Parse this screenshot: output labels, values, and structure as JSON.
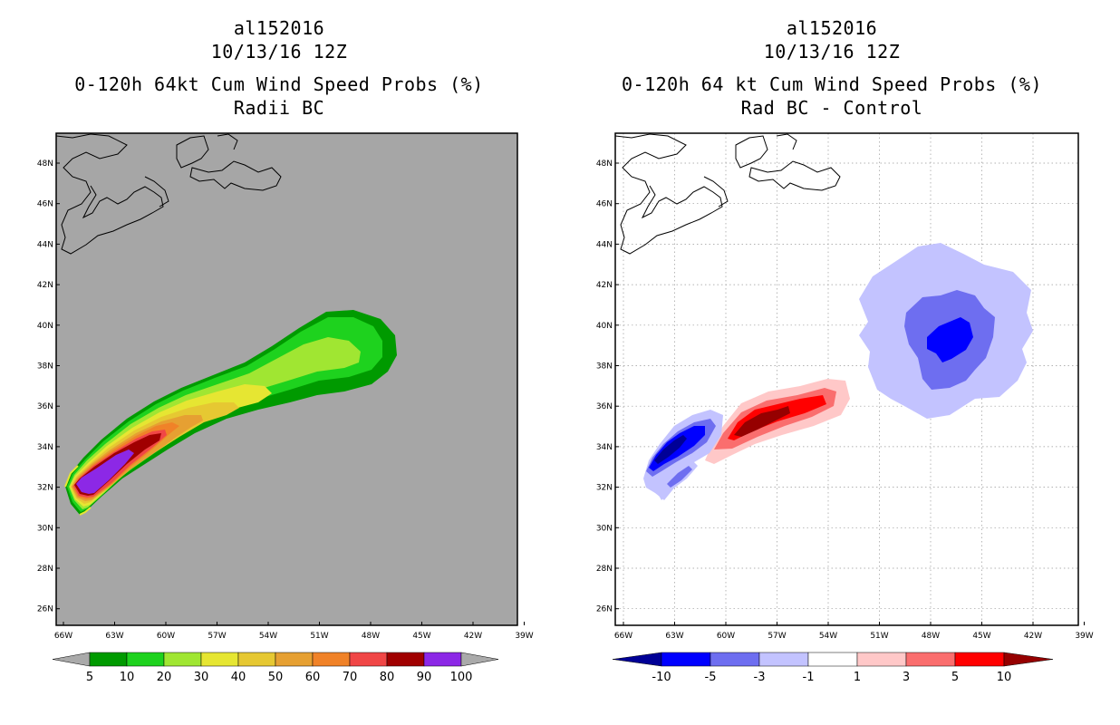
{
  "left_panel": {
    "title_lines": [
      "al152016",
      "10/13/16 12Z",
      "0-120h 64kt Cum Wind Speed Probs (%)",
      "Radii BC"
    ],
    "colorbar": {
      "labels": [
        "5",
        "10",
        "20",
        "30",
        "40",
        "50",
        "60",
        "70",
        "80",
        "90",
        "100"
      ],
      "colors": [
        "#aaaaaa",
        "#009a00",
        "#1ed21e",
        "#a0e632",
        "#e6e632",
        "#e6c832",
        "#e6a032",
        "#f08228",
        "#f04646",
        "#a00000",
        "#8c28e6",
        "#aaaaaa"
      ]
    },
    "background_color": "#a6a6a6"
  },
  "right_panel": {
    "title_lines": [
      "al152016",
      "10/13/16 12Z",
      "0-120h 64 kt Cum Wind Speed Probs (%)",
      "Rad BC - Control"
    ],
    "colorbar": {
      "labels": [
        "-10",
        "-5",
        "-3",
        "-1",
        "1",
        "3",
        "5",
        "10"
      ],
      "colors": [
        "#000096",
        "#0000ff",
        "#6e6ef0",
        "#c3c3ff",
        "#ffffff",
        "#ffc8c8",
        "#fa6e6e",
        "#ff0000",
        "#960000"
      ]
    },
    "background_color": "#ffffff"
  },
  "axes": {
    "lat_labels": [
      "48N",
      "46N",
      "44N",
      "42N",
      "40N",
      "38N",
      "36N",
      "34N",
      "32N",
      "30N",
      "28N",
      "26N"
    ],
    "lon_labels": [
      "66W",
      "63W",
      "60W",
      "57W",
      "54W",
      "51W",
      "48W",
      "45W",
      "42W",
      "39W"
    ]
  }
}
